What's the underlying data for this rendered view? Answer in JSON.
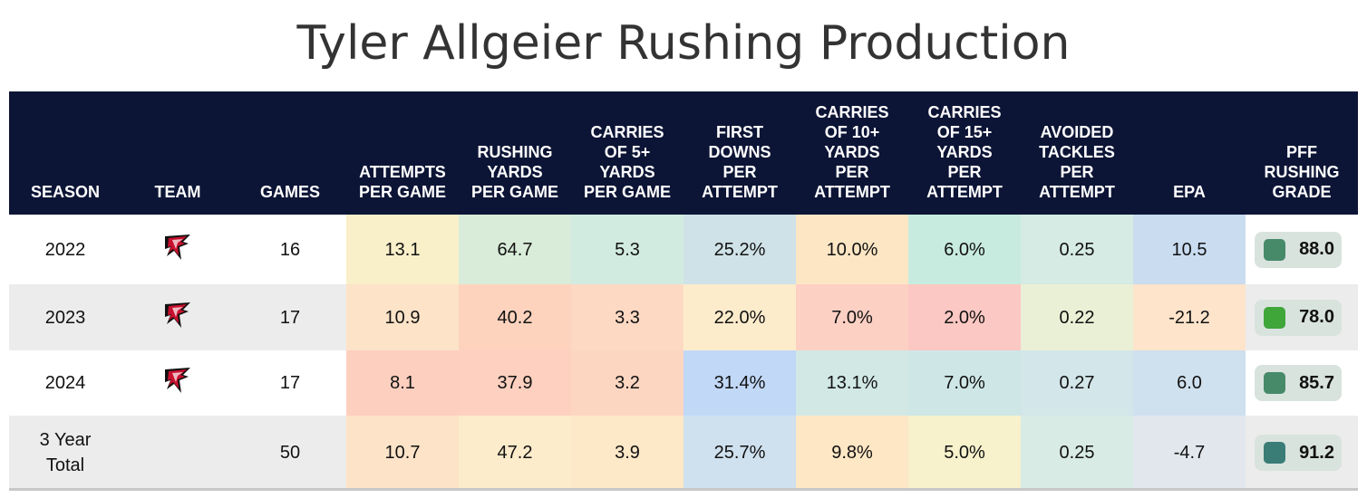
{
  "title": "Tyler Allgeier Rushing Production",
  "headers": [
    "SEASON",
    "TEAM",
    "GAMES",
    "ATTEMPTS\nPER GAME",
    "RUSHING\nYARDS\nPER GAME",
    "CARRIES\nOF 5+\nYARDS\nPER GAME",
    "FIRST\nDOWNS\nPER\nATTEMPT",
    "CARRIES\nOF 10+\nYARDS\nPER\nATTEMPT",
    "CARRIES\nOF 15+\nYARDS\nPER\nATTEMPT",
    "AVOIDED\nTACKLES\nPER\nATTEMPT",
    "EPA",
    "PFF\nRUSHING\nGRADE"
  ],
  "team_logo_icon": "atlanta-falcons-logo",
  "rows": [
    {
      "season": "2022",
      "team_logo": true,
      "games": "16",
      "metrics": [
        "13.1",
        "64.7",
        "5.3",
        "25.2%",
        "10.0%",
        "6.0%",
        "0.25",
        "10.5"
      ],
      "colors": [
        "#f9efc9",
        "#d9ecd9",
        "#d2ebe0",
        "#cfe2e8",
        "#fde6c4",
        "#c8ebe0",
        "#d5ebe3",
        "#c9dcf0"
      ],
      "grade": "88.0",
      "grade_color": "#468a6a"
    },
    {
      "season": "2023",
      "team_logo": true,
      "games": "17",
      "metrics": [
        "10.9",
        "40.2",
        "3.3",
        "22.0%",
        "7.0%",
        "2.0%",
        "0.22",
        "-21.2"
      ],
      "colors": [
        "#fde3c7",
        "#fdd3bd",
        "#fdd9c3",
        "#fdeccc",
        "#fdd0c4",
        "#fcc8c3",
        "#eaf0d6",
        "#fde4cb"
      ],
      "grade": "78.0",
      "grade_color": "#3fa63a"
    },
    {
      "season": "2024",
      "team_logo": true,
      "games": "17",
      "metrics": [
        "8.1",
        "37.9",
        "3.2",
        "31.4%",
        "13.1%",
        "7.0%",
        "0.27",
        "6.0"
      ],
      "colors": [
        "#fdcfbf",
        "#fdd0bf",
        "#fdd6c2",
        "#c1d8f7",
        "#d1e8e5",
        "#cee6e6",
        "#d3e6ea",
        "#cfe0ee"
      ],
      "grade": "85.7",
      "grade_color": "#468a6a"
    },
    {
      "season": "3 Year\nTotal",
      "team_logo": false,
      "games": "50",
      "metrics": [
        "10.7",
        "47.2",
        "3.9",
        "25.7%",
        "9.8%",
        "5.0%",
        "0.25",
        "-4.7"
      ],
      "colors": [
        "#fde3c7",
        "#fdeccb",
        "#fde8c8",
        "#cfe0ee",
        "#fde7c5",
        "#f7f1cc",
        "#d8ebe5",
        "#e2e7ee"
      ],
      "grade": "91.2",
      "grade_color": "#3a7d77"
    }
  ]
}
